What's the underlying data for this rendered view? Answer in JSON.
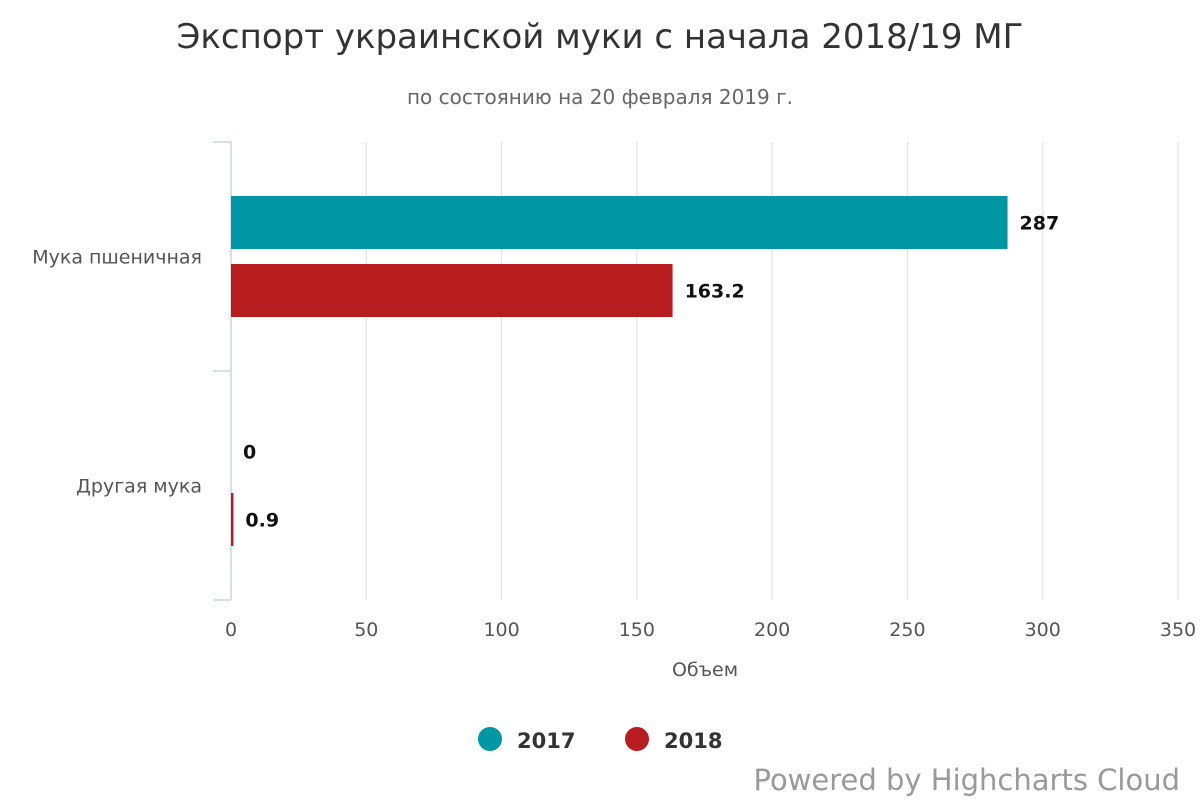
{
  "chart_data": {
    "type": "bar",
    "orientation": "horizontal",
    "title": "Экспорт украинской муки с начала 2018/19 МГ",
    "subtitle": "по состоянию на 20 февраля 2019 г.",
    "categories": [
      "Мука пшеничная",
      "Другая мука"
    ],
    "series": [
      {
        "name": "2017",
        "color": "#0096A4",
        "values": [
          287,
          0
        ]
      },
      {
        "name": "2018",
        "color": "#B71C1F",
        "values": [
          163.2,
          0.9
        ]
      }
    ],
    "value_axis": {
      "title": "Объем",
      "range": [
        0,
        350
      ],
      "ticks": [
        0,
        50,
        100,
        150,
        200,
        250,
        300,
        350
      ],
      "tick_labels": [
        "0",
        "50",
        "100",
        "150",
        "200",
        "250",
        "300",
        "350"
      ]
    },
    "grid": true,
    "legend": {
      "placement": "bottom-center",
      "marker": "circle"
    },
    "credits": "Powered by Highcharts Cloud"
  }
}
